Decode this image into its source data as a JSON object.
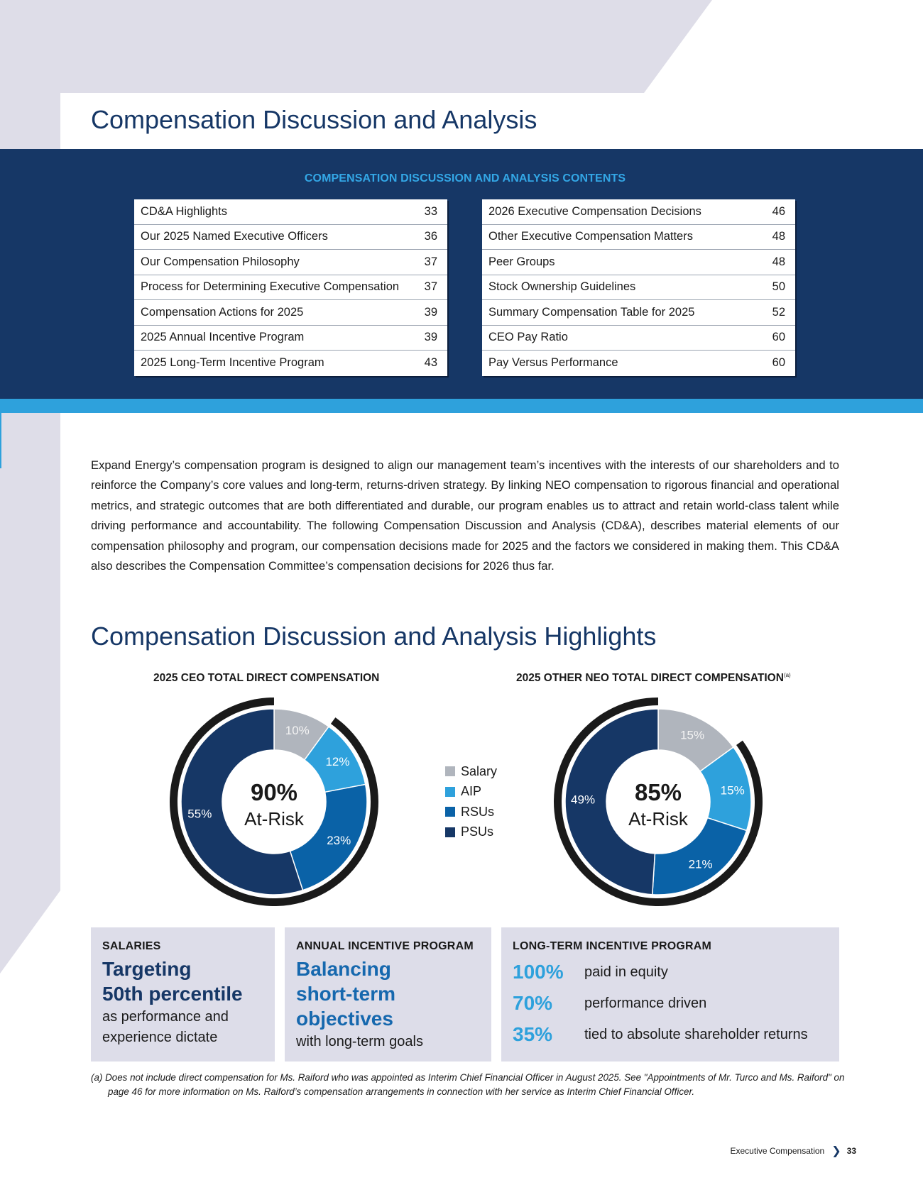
{
  "page_title": "Compensation Discussion and Analysis",
  "toc": {
    "heading": "COMPENSATION DISCUSSION AND ANALYSIS CONTENTS",
    "left": [
      {
        "label": "CD&A Highlights",
        "page": "33"
      },
      {
        "label": "Our 2025 Named Executive Officers",
        "page": "36"
      },
      {
        "label": "Our Compensation Philosophy",
        "page": "37"
      },
      {
        "label": "Process for Determining Executive Compensation",
        "page": "37"
      },
      {
        "label": "Compensation Actions for 2025",
        "page": "39"
      },
      {
        "label": "2025 Annual Incentive Program",
        "page": "39"
      },
      {
        "label": "2025 Long-Term Incentive Program",
        "page": "43"
      }
    ],
    "right": [
      {
        "label": "2026 Executive Compensation Decisions",
        "page": "46"
      },
      {
        "label": "Other Executive Compensation Matters",
        "page": "48"
      },
      {
        "label": "Peer Groups",
        "page": "48"
      },
      {
        "label": "Stock Ownership Guidelines",
        "page": "50"
      },
      {
        "label": "Summary Compensation Table for 2025",
        "page": "52"
      },
      {
        "label": "CEO Pay Ratio",
        "page": "60"
      },
      {
        "label": "Pay Versus Performance",
        "page": "60"
      }
    ]
  },
  "intro": "Expand Energy’s compensation program is designed to align our management team’s incentives with the interests of our shareholders and to reinforce the Company’s core values and long-term, returns-driven strategy. By linking NEO compensation to rigorous financial and operational metrics, and strategic outcomes that are both differentiated and durable, our program enables us to attract and retain world-class talent while driving performance and accountability. The following Compensation Discussion and Analysis (CD&A), describes material elements of our compensation philosophy and program, our compensation decisions made for 2025 and the factors we considered in making them. This CD&A also describes the Compensation Committee’s compensation decisions for 2026 thus far.",
  "highlights_title": "Compensation Discussion and Analysis Highlights",
  "chart_data": [
    {
      "type": "pie",
      "title": "2025 CEO TOTAL DIRECT COMPENSATION",
      "footnote_marker": "",
      "categories": [
        "Salary",
        "AIP",
        "RSUs",
        "PSUs"
      ],
      "values": [
        10,
        12,
        23,
        55
      ],
      "labels": [
        "10%",
        "12%",
        "23%",
        "55%"
      ],
      "center_value": "90%",
      "center_label": "At-Risk",
      "at_risk_percent": 90
    },
    {
      "type": "pie",
      "title": "2025 OTHER NEO TOTAL DIRECT COMPENSATION",
      "footnote_marker": "(a)",
      "categories": [
        "Salary",
        "AIP",
        "RSUs",
        "PSUs"
      ],
      "values": [
        15,
        15,
        21,
        49
      ],
      "labels": [
        "15%",
        "15%",
        "21%",
        "49%"
      ],
      "center_value": "85%",
      "center_label": "At-Risk",
      "at_risk_percent": 85
    }
  ],
  "legend": [
    {
      "label": "Salary",
      "color": "#b0b5bd"
    },
    {
      "label": "AIP",
      "color": "#2ea1dc"
    },
    {
      "label": "RSUs",
      "color": "#0a62a7"
    },
    {
      "label": "PSUs",
      "color": "#163766"
    }
  ],
  "colors": {
    "navy": "#163766",
    "accent_blue": "#2ea1dc",
    "mid_blue": "#1668ae",
    "panel_gray": "#dddde9",
    "ring_black": "#1a1a1a"
  },
  "boxes": {
    "salaries": {
      "label": "SALARIES",
      "big1": "Targeting",
      "big2": "50th percentile",
      "sub1": "as performance and",
      "sub2": "experience dictate"
    },
    "aip": {
      "label": "ANNUAL INCENTIVE PROGRAM",
      "big1": "Balancing",
      "big2": "short-term",
      "big3": "objectives",
      "sub1": "with long-term goals"
    },
    "lti": {
      "label": "LONG-TERM INCENTIVE PROGRAM",
      "rows": [
        {
          "pct": "100%",
          "text": "paid in equity"
        },
        {
          "pct": "70%",
          "text": "performance driven"
        },
        {
          "pct": "35%",
          "text": "tied to absolute shareholder returns"
        }
      ]
    }
  },
  "footnote": "(a)  Does not include direct compensation for Ms. Raiford who was appointed as Interim Chief Financial Officer in August 2025. See \"Appointments of Mr. Turco and Ms. Raiford\" on page 46 for more information on Ms. Raiford’s compensation arrangements in connection with her service as Interim Chief Financial Officer.",
  "footer": {
    "section": "Executive Compensation",
    "chevron": "❯",
    "page": "33"
  }
}
